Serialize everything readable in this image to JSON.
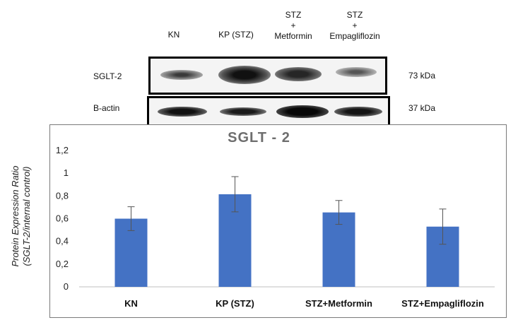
{
  "blot": {
    "lanes": [
      [
        "KN"
      ],
      [
        "KP (STZ)"
      ],
      [
        "STZ",
        "+",
        "Metformin"
      ],
      [
        "STZ",
        "+",
        "Empagliflozin"
      ]
    ],
    "rows": [
      {
        "label": "SGLT-2",
        "kda": "73 kDa"
      },
      {
        "label": "B-actin",
        "kda": "37 kDa"
      }
    ]
  },
  "chart_data": {
    "type": "bar",
    "title": "SGLT - 2",
    "ylabel_lines": [
      "Protein Expression Ratio",
      "(SGLT-2/internal control)"
    ],
    "categories": [
      "KN",
      "KP (STZ)",
      "STZ+Metformin",
      "STZ+Empagliflozin"
    ],
    "values": [
      0.6,
      0.815,
      0.655,
      0.53
    ],
    "errors": [
      0.105,
      0.155,
      0.105,
      0.155
    ],
    "ylim": [
      0,
      1.2
    ],
    "yticks": [
      "0",
      "0,2",
      "0,4",
      "0,6",
      "0,8",
      "1",
      "1,2"
    ],
    "ytick_values": [
      0,
      0.2,
      0.4,
      0.6,
      0.8,
      1.0,
      1.2
    ],
    "bar_color": "#4472c4",
    "grid": false
  }
}
